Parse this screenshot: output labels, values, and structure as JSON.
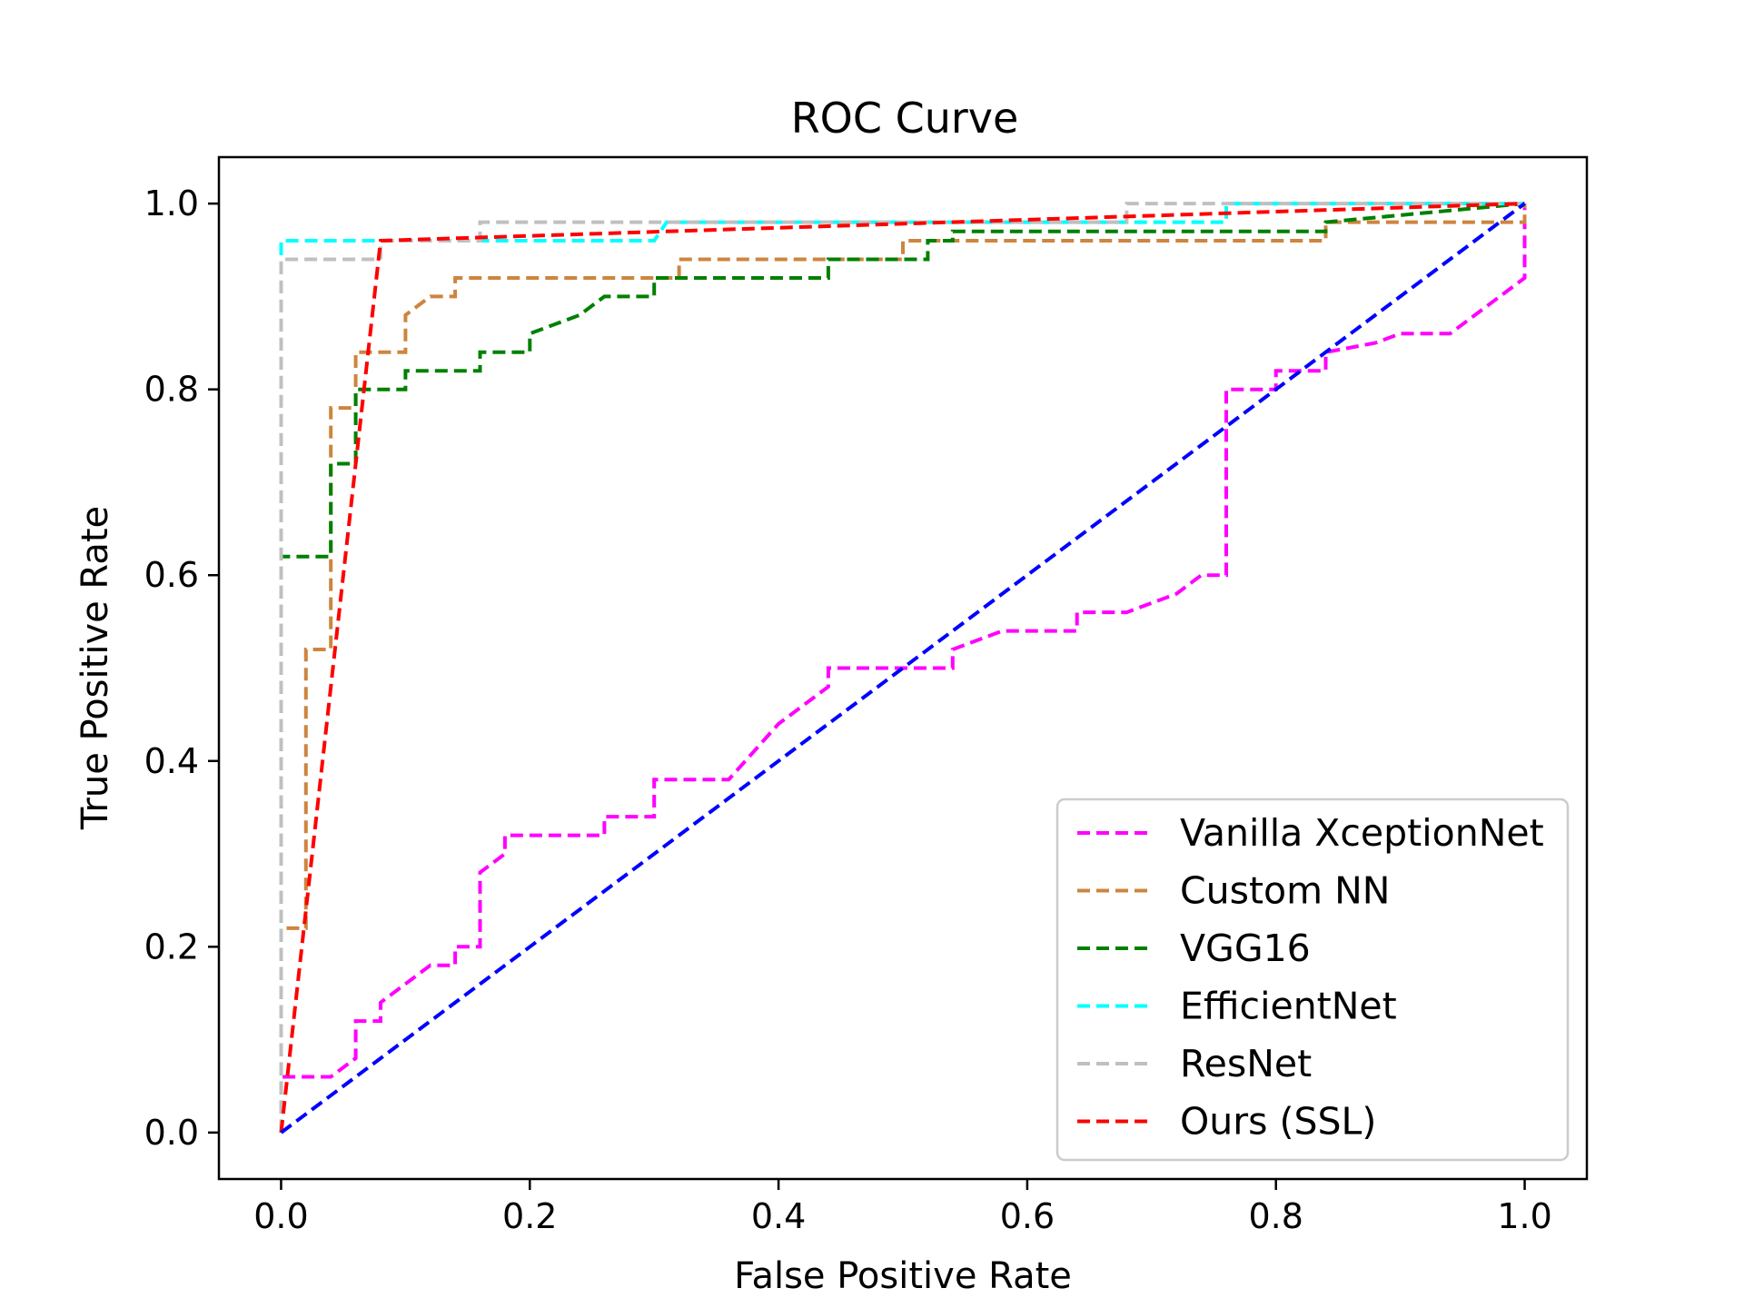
{
  "chart_data": {
    "type": "line",
    "title": "ROC Curve",
    "xlabel": "False Positive Rate",
    "ylabel": "True Positive Rate",
    "xlim": [
      -0.05,
      1.05
    ],
    "ylim": [
      -0.05,
      1.05
    ],
    "xticks": [
      0.0,
      0.2,
      0.4,
      0.6,
      0.8,
      1.0
    ],
    "yticks": [
      0.0,
      0.2,
      0.4,
      0.6,
      0.8,
      1.0
    ],
    "xtick_labels": [
      "0.0",
      "0.2",
      "0.4",
      "0.6",
      "0.8",
      "1.0"
    ],
    "ytick_labels": [
      "0.0",
      "0.2",
      "0.4",
      "0.6",
      "0.8",
      "1.0"
    ],
    "grid": false,
    "legend_position": "bottom-right",
    "series": [
      {
        "name": "Vanilla XceptionNet",
        "color": "#ff00ff",
        "x": [
          0,
          0,
          0.04,
          0.06,
          0.06,
          0.08,
          0.08,
          0.1,
          0.12,
          0.14,
          0.14,
          0.16,
          0.16,
          0.18,
          0.18,
          0.26,
          0.26,
          0.3,
          0.3,
          0.36,
          0.4,
          0.44,
          0.44,
          0.5,
          0.54,
          0.54,
          0.58,
          0.64,
          0.64,
          0.68,
          0.72,
          0.74,
          0.76,
          0.76,
          0.8,
          0.8,
          0.84,
          0.84,
          0.88,
          0.9,
          0.94,
          1.0,
          1.0
        ],
        "y": [
          0,
          0.06,
          0.06,
          0.08,
          0.12,
          0.12,
          0.14,
          0.16,
          0.18,
          0.18,
          0.2,
          0.2,
          0.28,
          0.3,
          0.32,
          0.32,
          0.34,
          0.34,
          0.38,
          0.38,
          0.44,
          0.48,
          0.5,
          0.5,
          0.5,
          0.52,
          0.54,
          0.54,
          0.56,
          0.56,
          0.58,
          0.6,
          0.6,
          0.8,
          0.8,
          0.82,
          0.82,
          0.84,
          0.85,
          0.86,
          0.86,
          0.92,
          1.0
        ]
      },
      {
        "name": "Custom NN",
        "color": "#cd853f",
        "x": [
          0,
          0,
          0.02,
          0.02,
          0.04,
          0.04,
          0.06,
          0.06,
          0.1,
          0.1,
          0.12,
          0.14,
          0.14,
          0.32,
          0.32,
          0.5,
          0.5,
          0.84,
          0.84,
          1.0,
          1.0
        ],
        "y": [
          0,
          0.22,
          0.22,
          0.52,
          0.52,
          0.78,
          0.78,
          0.84,
          0.84,
          0.88,
          0.9,
          0.9,
          0.92,
          0.92,
          0.94,
          0.94,
          0.96,
          0.96,
          0.98,
          0.98,
          1.0
        ]
      },
      {
        "name": "VGG16",
        "color": "#008000",
        "x": [
          0,
          0,
          0.04,
          0.04,
          0.06,
          0.06,
          0.1,
          0.1,
          0.16,
          0.16,
          0.2,
          0.2,
          0.24,
          0.26,
          0.3,
          0.3,
          0.44,
          0.44,
          0.52,
          0.52,
          0.54,
          0.54,
          0.84,
          0.84,
          1.0
        ],
        "y": [
          0,
          0.62,
          0.62,
          0.72,
          0.72,
          0.8,
          0.8,
          0.82,
          0.82,
          0.84,
          0.84,
          0.86,
          0.88,
          0.9,
          0.9,
          0.92,
          0.92,
          0.94,
          0.94,
          0.96,
          0.96,
          0.97,
          0.97,
          0.98,
          1.0
        ]
      },
      {
        "name": "EfficientNet",
        "color": "#00ffff",
        "x": [
          0,
          0,
          0.3,
          0.31,
          0.5,
          0.68,
          0.76,
          0.76,
          0.96,
          1.0
        ],
        "y": [
          0,
          0.96,
          0.96,
          0.98,
          0.98,
          0.98,
          0.98,
          1.0,
          1.0,
          1.0
        ]
      },
      {
        "name": "ResNet",
        "color": "#c0c0c0",
        "x": [
          0,
          0,
          0.08,
          0.08,
          0.16,
          0.16,
          0.68,
          0.68,
          1.0
        ],
        "y": [
          0,
          0.94,
          0.94,
          0.96,
          0.96,
          0.98,
          0.98,
          1.0,
          1.0
        ]
      },
      {
        "name": "Ours (SSL)",
        "color": "#ff0000",
        "x": [
          0,
          0.08,
          1.0
        ],
        "y": [
          0,
          0.96,
          1.0
        ]
      },
      {
        "name": "",
        "color": "#0000ff",
        "x": [
          0,
          1
        ],
        "y": [
          0,
          1
        ]
      }
    ]
  }
}
